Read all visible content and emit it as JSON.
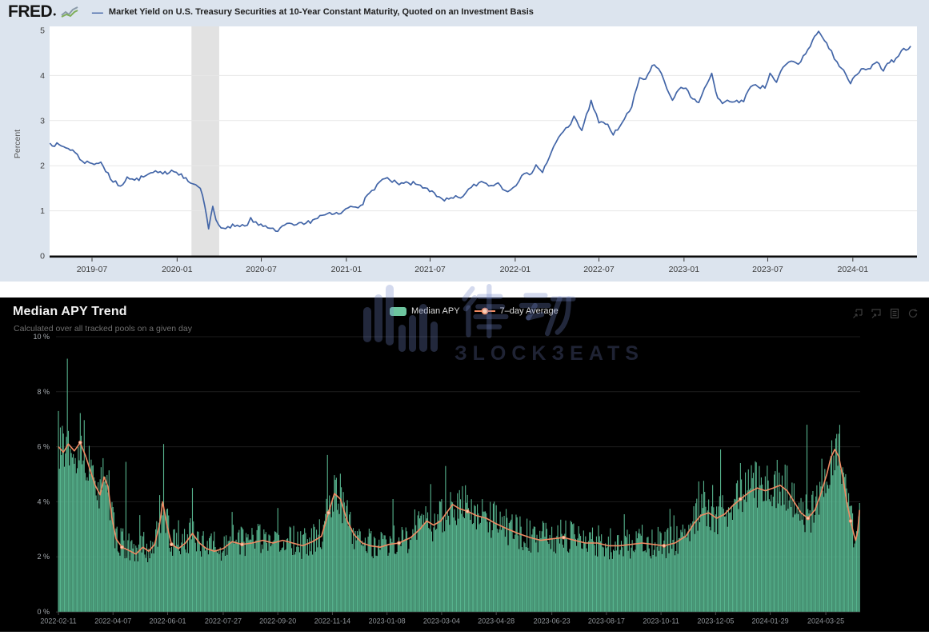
{
  "fred": {
    "logo": "FRED",
    "series_label": "Market Yield on U.S. Treasury Securities at 10-Year Constant Maturity, Quoted on an Investment Basis",
    "ylabel": "Percent"
  },
  "apy": {
    "title": "Median APY Trend",
    "subtitle": "Calculated over all tracked pools on a given day",
    "legend_bar": "Median APY",
    "legend_line": "7–day Average"
  },
  "watermark": {
    "cjk": "律动",
    "latin": "BLOCKBEATS",
    "latin_display": "ЗLOCKЗEATS"
  },
  "colors": {
    "fred_bg": "#dce4ee",
    "fred_line": "#4265a7",
    "recession_band": "#e2e2e2",
    "apy_bg": "#000000",
    "apy_bar": "#57b48e",
    "apy_line": "#ef8a63",
    "legend_swatch": "#6dc59f"
  },
  "chart_data": [
    {
      "type": "line",
      "title": "Market Yield on U.S. Treasury Securities at 10-Year Constant Maturity, Quoted on an Investment Basis",
      "xlabel": "",
      "ylabel": "Percent",
      "ylim": [
        0,
        5
      ],
      "y_ticks": [
        0,
        1,
        2,
        3,
        4,
        5
      ],
      "x_ticks": [
        "2019-07",
        "2020-01",
        "2020-07",
        "2021-01",
        "2021-07",
        "2022-01",
        "2022-07",
        "2023-01",
        "2023-07",
        "2024-01"
      ],
      "recession_band": [
        "2020-02-01",
        "2020-04-01"
      ],
      "grid": "horizontal",
      "legend_position": "top",
      "series": [
        [
          "2019-04-01",
          2.5
        ],
        [
          "2019-05-01",
          2.42
        ],
        [
          "2019-05-20",
          2.35
        ],
        [
          "2019-06-10",
          2.1
        ],
        [
          "2019-07-01",
          2.05
        ],
        [
          "2019-07-20",
          2.08
        ],
        [
          "2019-08-10",
          1.7
        ],
        [
          "2019-09-01",
          1.55
        ],
        [
          "2019-09-15",
          1.75
        ],
        [
          "2019-10-01",
          1.68
        ],
        [
          "2019-10-20",
          1.75
        ],
        [
          "2019-11-10",
          1.85
        ],
        [
          "2019-12-01",
          1.82
        ],
        [
          "2019-12-20",
          1.9
        ],
        [
          "2020-01-10",
          1.82
        ],
        [
          "2020-01-25",
          1.65
        ],
        [
          "2020-02-10",
          1.58
        ],
        [
          "2020-02-20",
          1.5
        ],
        [
          "2020-03-01",
          1.1
        ],
        [
          "2020-03-09",
          0.6
        ],
        [
          "2020-03-18",
          1.1
        ],
        [
          "2020-03-25",
          0.8
        ],
        [
          "2020-04-05",
          0.62
        ],
        [
          "2020-04-20",
          0.65
        ],
        [
          "2020-05-10",
          0.68
        ],
        [
          "2020-06-01",
          0.68
        ],
        [
          "2020-06-08",
          0.85
        ],
        [
          "2020-06-25",
          0.68
        ],
        [
          "2020-07-15",
          0.62
        ],
        [
          "2020-08-01",
          0.55
        ],
        [
          "2020-08-20",
          0.68
        ],
        [
          "2020-09-10",
          0.68
        ],
        [
          "2020-10-01",
          0.7
        ],
        [
          "2020-10-25",
          0.82
        ],
        [
          "2020-11-10",
          0.9
        ],
        [
          "2020-12-01",
          0.92
        ],
        [
          "2020-12-20",
          0.94
        ],
        [
          "2021-01-10",
          1.1
        ],
        [
          "2021-02-01",
          1.12
        ],
        [
          "2021-02-25",
          1.45
        ],
        [
          "2021-03-20",
          1.7
        ],
        [
          "2021-04-05",
          1.68
        ],
        [
          "2021-04-25",
          1.58
        ],
        [
          "2021-05-15",
          1.62
        ],
        [
          "2021-06-05",
          1.58
        ],
        [
          "2021-06-25",
          1.5
        ],
        [
          "2021-07-15",
          1.32
        ],
        [
          "2021-08-01",
          1.22
        ],
        [
          "2021-08-20",
          1.28
        ],
        [
          "2021-09-10",
          1.32
        ],
        [
          "2021-09-28",
          1.52
        ],
        [
          "2021-10-20",
          1.65
        ],
        [
          "2021-11-10",
          1.56
        ],
        [
          "2021-11-25",
          1.62
        ],
        [
          "2021-12-10",
          1.45
        ],
        [
          "2021-12-28",
          1.52
        ],
        [
          "2022-01-15",
          1.78
        ],
        [
          "2022-02-01",
          1.8
        ],
        [
          "2022-02-15",
          2.02
        ],
        [
          "2022-03-01",
          1.85
        ],
        [
          "2022-03-20",
          2.3
        ],
        [
          "2022-04-10",
          2.7
        ],
        [
          "2022-05-01",
          2.92
        ],
        [
          "2022-05-08",
          3.1
        ],
        [
          "2022-05-25",
          2.78
        ],
        [
          "2022-06-14",
          3.45
        ],
        [
          "2022-07-01",
          2.95
        ],
        [
          "2022-07-20",
          2.92
        ],
        [
          "2022-08-01",
          2.68
        ],
        [
          "2022-08-20",
          2.95
        ],
        [
          "2022-09-10",
          3.3
        ],
        [
          "2022-09-27",
          3.95
        ],
        [
          "2022-10-10",
          3.92
        ],
        [
          "2022-10-24",
          4.22
        ],
        [
          "2022-11-07",
          4.15
        ],
        [
          "2022-11-25",
          3.7
        ],
        [
          "2022-12-07",
          3.45
        ],
        [
          "2022-12-20",
          3.68
        ],
        [
          "2023-01-05",
          3.72
        ],
        [
          "2023-01-20",
          3.48
        ],
        [
          "2023-02-02",
          3.4
        ],
        [
          "2023-02-20",
          3.82
        ],
        [
          "2023-03-02",
          4.05
        ],
        [
          "2023-03-15",
          3.5
        ],
        [
          "2023-03-25",
          3.38
        ],
        [
          "2023-04-10",
          3.42
        ],
        [
          "2023-04-25",
          3.45
        ],
        [
          "2023-05-10",
          3.42
        ],
        [
          "2023-05-25",
          3.75
        ],
        [
          "2023-06-10",
          3.75
        ],
        [
          "2023-06-25",
          3.72
        ],
        [
          "2023-07-06",
          4.05
        ],
        [
          "2023-07-20",
          3.85
        ],
        [
          "2023-08-03",
          4.18
        ],
        [
          "2023-08-21",
          4.32
        ],
        [
          "2023-09-05",
          4.25
        ],
        [
          "2023-09-21",
          4.48
        ],
        [
          "2023-10-06",
          4.78
        ],
        [
          "2023-10-19",
          4.98
        ],
        [
          "2023-10-27",
          4.85
        ],
        [
          "2023-11-10",
          4.6
        ],
        [
          "2023-11-28",
          4.3
        ],
        [
          "2023-12-12",
          4.12
        ],
        [
          "2023-12-27",
          3.82
        ],
        [
          "2024-01-10",
          4.02
        ],
        [
          "2024-01-24",
          4.15
        ],
        [
          "2024-02-08",
          4.15
        ],
        [
          "2024-02-22",
          4.3
        ],
        [
          "2024-03-07",
          4.1
        ],
        [
          "2024-03-20",
          4.28
        ],
        [
          "2024-04-03",
          4.38
        ],
        [
          "2024-04-15",
          4.55
        ],
        [
          "2024-05-05",
          4.65
        ]
      ],
      "jitter": 0.05
    },
    {
      "type": "bar",
      "title": "Median APY Trend",
      "subtitle": "Calculated over all tracked pools on a given day",
      "ylim": [
        0,
        10
      ],
      "y_tick_values": [
        0,
        2,
        4,
        6,
        8,
        10
      ],
      "y_tick_labels": [
        "0 %",
        "2 %",
        "4 %",
        "6 %",
        "8 %",
        "10 %"
      ],
      "x_ticks": [
        "2022-02-11",
        "2022-04-07",
        "2022-06-01",
        "2022-07-27",
        "2022-09-20",
        "2022-11-14",
        "2023-01-08",
        "2023-03-04",
        "2023-04-28",
        "2023-06-23",
        "2023-08-17",
        "2023-10-11",
        "2023-12-05",
        "2024-01-29",
        "2024-03-25"
      ],
      "bar_series_name": "Median APY",
      "line_series_name": "7–day Average",
      "bars_start": "2022-02-11",
      "bars_end": "2024-04-28",
      "bar_noise": 0.28,
      "avg_series": [
        [
          "2022-02-11",
          6.0
        ],
        [
          "2022-02-16",
          5.8
        ],
        [
          "2022-02-21",
          6.1
        ],
        [
          "2022-02-27",
          5.85
        ],
        [
          "2022-03-05",
          6.15
        ],
        [
          "2022-03-10",
          5.7
        ],
        [
          "2022-03-15",
          5.15
        ],
        [
          "2022-03-20",
          4.6
        ],
        [
          "2022-03-25",
          4.25
        ],
        [
          "2022-03-29",
          4.9
        ],
        [
          "2022-04-02",
          4.55
        ],
        [
          "2022-04-06",
          3.4
        ],
        [
          "2022-04-10",
          2.65
        ],
        [
          "2022-04-16",
          2.35
        ],
        [
          "2022-04-22",
          2.25
        ],
        [
          "2022-04-30",
          2.1
        ],
        [
          "2022-05-07",
          2.35
        ],
        [
          "2022-05-13",
          2.2
        ],
        [
          "2022-05-19",
          2.45
        ],
        [
          "2022-05-24",
          3.2
        ],
        [
          "2022-05-27",
          4.0
        ],
        [
          "2022-05-31",
          3.2
        ],
        [
          "2022-06-05",
          2.45
        ],
        [
          "2022-06-12",
          2.3
        ],
        [
          "2022-06-19",
          2.5
        ],
        [
          "2022-06-26",
          2.85
        ],
        [
          "2022-07-03",
          2.5
        ],
        [
          "2022-07-10",
          2.3
        ],
        [
          "2022-07-18",
          2.2
        ],
        [
          "2022-07-27",
          2.3
        ],
        [
          "2022-08-05",
          2.55
        ],
        [
          "2022-08-15",
          2.45
        ],
        [
          "2022-08-25",
          2.5
        ],
        [
          "2022-09-05",
          2.6
        ],
        [
          "2022-09-15",
          2.5
        ],
        [
          "2022-09-25",
          2.6
        ],
        [
          "2022-10-05",
          2.5
        ],
        [
          "2022-10-15",
          2.4
        ],
        [
          "2022-10-25",
          2.55
        ],
        [
          "2022-11-03",
          2.75
        ],
        [
          "2022-11-10",
          3.6
        ],
        [
          "2022-11-16",
          4.3
        ],
        [
          "2022-11-22",
          4.1
        ],
        [
          "2022-11-29",
          3.3
        ],
        [
          "2022-12-06",
          2.8
        ],
        [
          "2022-12-14",
          2.5
        ],
        [
          "2022-12-22",
          2.4
        ],
        [
          "2023-01-01",
          2.35
        ],
        [
          "2023-01-10",
          2.45
        ],
        [
          "2023-01-20",
          2.5
        ],
        [
          "2023-02-01",
          2.7
        ],
        [
          "2023-02-10",
          3.0
        ],
        [
          "2023-02-17",
          3.3
        ],
        [
          "2023-02-24",
          3.15
        ],
        [
          "2023-03-03",
          3.3
        ],
        [
          "2023-03-10",
          3.65
        ],
        [
          "2023-03-15",
          3.9
        ],
        [
          "2023-03-22",
          3.75
        ],
        [
          "2023-03-30",
          3.65
        ],
        [
          "2023-04-08",
          3.5
        ],
        [
          "2023-04-18",
          3.4
        ],
        [
          "2023-04-28",
          3.2
        ],
        [
          "2023-05-10",
          3.0
        ],
        [
          "2023-05-20",
          2.85
        ],
        [
          "2023-06-01",
          2.7
        ],
        [
          "2023-06-12",
          2.6
        ],
        [
          "2023-06-23",
          2.65
        ],
        [
          "2023-07-05",
          2.7
        ],
        [
          "2023-07-16",
          2.6
        ],
        [
          "2023-07-27",
          2.5
        ],
        [
          "2023-08-08",
          2.5
        ],
        [
          "2023-08-19",
          2.4
        ],
        [
          "2023-08-30",
          2.4
        ],
        [
          "2023-09-11",
          2.45
        ],
        [
          "2023-09-22",
          2.5
        ],
        [
          "2023-10-03",
          2.45
        ],
        [
          "2023-10-14",
          2.4
        ],
        [
          "2023-10-25",
          2.5
        ],
        [
          "2023-11-05",
          2.75
        ],
        [
          "2023-11-13",
          3.2
        ],
        [
          "2023-11-20",
          3.5
        ],
        [
          "2023-11-28",
          3.6
        ],
        [
          "2023-12-06",
          3.4
        ],
        [
          "2023-12-14",
          3.55
        ],
        [
          "2023-12-22",
          3.85
        ],
        [
          "2023-12-30",
          4.1
        ],
        [
          "2024-01-08",
          4.35
        ],
        [
          "2024-01-16",
          4.5
        ],
        [
          "2024-01-24",
          4.4
        ],
        [
          "2024-02-01",
          4.5
        ],
        [
          "2024-02-08",
          4.6
        ],
        [
          "2024-02-15",
          4.4
        ],
        [
          "2024-02-22",
          4.0
        ],
        [
          "2024-02-29",
          3.6
        ],
        [
          "2024-03-07",
          3.4
        ],
        [
          "2024-03-14",
          3.7
        ],
        [
          "2024-03-20",
          4.3
        ],
        [
          "2024-03-26",
          5.0
        ],
        [
          "2024-03-30",
          5.6
        ],
        [
          "2024-04-03",
          5.9
        ],
        [
          "2024-04-07",
          5.65
        ],
        [
          "2024-04-11",
          4.9
        ],
        [
          "2024-04-15",
          4.0
        ],
        [
          "2024-04-19",
          3.3
        ],
        [
          "2024-04-22",
          2.85
        ],
        [
          "2024-04-24",
          2.6
        ],
        [
          "2024-04-26",
          2.9
        ],
        [
          "2024-04-28",
          3.7
        ]
      ],
      "bar_spikes": [
        [
          "2022-02-11",
          7.3
        ],
        [
          "2022-02-13",
          6.7
        ],
        [
          "2022-02-20",
          9.2
        ],
        [
          "2022-03-06",
          6.4
        ],
        [
          "2022-04-20",
          5.45
        ],
        [
          "2022-05-28",
          6.1
        ],
        [
          "2022-06-26",
          4.5
        ],
        [
          "2022-11-09",
          5.7
        ],
        [
          "2023-01-14",
          4.1
        ],
        [
          "2023-03-08",
          5.3
        ],
        [
          "2023-03-28",
          4.6
        ],
        [
          "2023-12-10",
          5.9
        ],
        [
          "2024-01-18",
          5.3
        ],
        [
          "2024-03-06",
          6.8
        ]
      ]
    }
  ]
}
